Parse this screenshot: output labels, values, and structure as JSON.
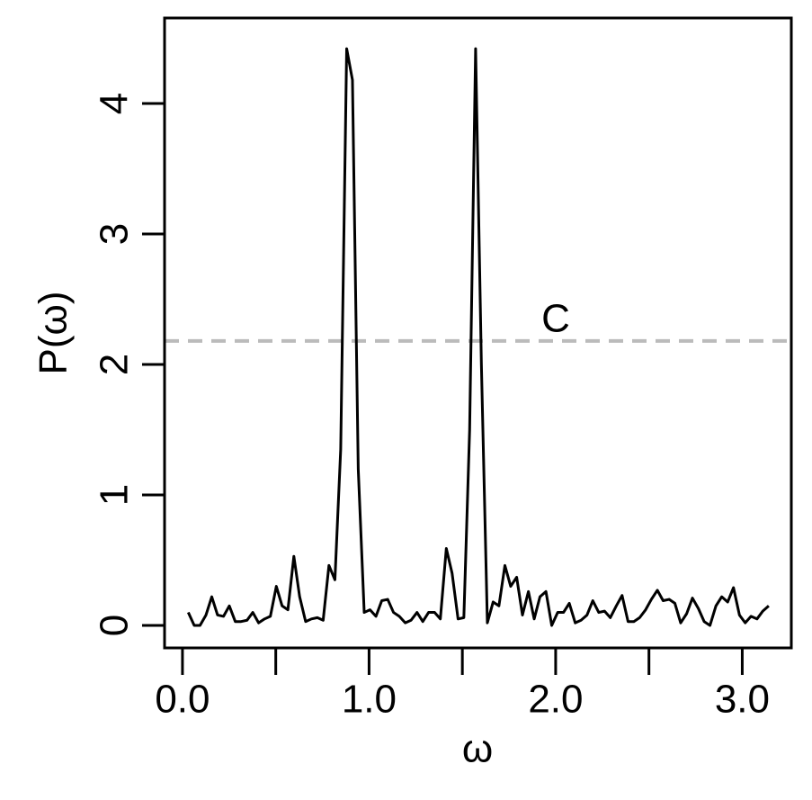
{
  "chart_data": {
    "type": "line",
    "xlabel": "ω",
    "ylabel": "P(ω)",
    "x": [
      0.031,
      0.063,
      0.094,
      0.126,
      0.157,
      0.188,
      0.22,
      0.251,
      0.283,
      0.314,
      0.346,
      0.377,
      0.408,
      0.44,
      0.471,
      0.503,
      0.534,
      0.565,
      0.597,
      0.628,
      0.66,
      0.691,
      0.723,
      0.754,
      0.785,
      0.817,
      0.848,
      0.88,
      0.911,
      0.942,
      0.974,
      1.005,
      1.037,
      1.068,
      1.1,
      1.131,
      1.162,
      1.194,
      1.225,
      1.257,
      1.288,
      1.319,
      1.351,
      1.382,
      1.414,
      1.445,
      1.477,
      1.508,
      1.539,
      1.571,
      1.602,
      1.634,
      1.665,
      1.696,
      1.728,
      1.759,
      1.791,
      1.822,
      1.854,
      1.885,
      1.916,
      1.948,
      1.979,
      2.011,
      2.042,
      2.073,
      2.105,
      2.136,
      2.168,
      2.199,
      2.231,
      2.262,
      2.293,
      2.325,
      2.356,
      2.388,
      2.419,
      2.45,
      2.482,
      2.513,
      2.545,
      2.576,
      2.608,
      2.639,
      2.67,
      2.702,
      2.733,
      2.765,
      2.796,
      2.827,
      2.859,
      2.89,
      2.922,
      2.953,
      2.985,
      3.016,
      3.047,
      3.079,
      3.11,
      3.142
    ],
    "values": [
      0.1,
      0.0,
      0.0,
      0.08,
      0.22,
      0.08,
      0.07,
      0.15,
      0.03,
      0.03,
      0.04,
      0.1,
      0.02,
      0.05,
      0.07,
      0.3,
      0.15,
      0.12,
      0.53,
      0.22,
      0.03,
      0.05,
      0.06,
      0.04,
      0.46,
      0.35,
      1.35,
      4.42,
      4.18,
      1.2,
      0.1,
      0.12,
      0.07,
      0.19,
      0.2,
      0.1,
      0.07,
      0.02,
      0.04,
      0.1,
      0.03,
      0.1,
      0.1,
      0.05,
      0.59,
      0.4,
      0.05,
      0.06,
      1.5,
      4.42,
      2.0,
      0.02,
      0.18,
      0.15,
      0.46,
      0.3,
      0.37,
      0.08,
      0.26,
      0.05,
      0.22,
      0.26,
      0.0,
      0.1,
      0.1,
      0.17,
      0.02,
      0.04,
      0.08,
      0.19,
      0.1,
      0.11,
      0.06,
      0.15,
      0.23,
      0.03,
      0.03,
      0.06,
      0.12,
      0.2,
      0.27,
      0.19,
      0.2,
      0.17,
      0.02,
      0.09,
      0.21,
      0.13,
      0.03,
      0.0,
      0.15,
      0.22,
      0.18,
      0.29,
      0.08,
      0.02,
      0.07,
      0.05,
      0.11,
      0.15
    ],
    "color": "#000000",
    "xlim": [
      -0.096,
      3.263
    ],
    "ylim": [
      -0.172,
      4.655
    ],
    "xticks": [
      {
        "value": 0,
        "label": "0.0"
      },
      {
        "value": 1,
        "label": "1.0"
      },
      {
        "value": 2,
        "label": "2.0"
      },
      {
        "value": 3,
        "label": "3.0"
      }
    ],
    "xminor_ticks": [
      0.5,
      1.5,
      2.5
    ],
    "yticks": [
      0,
      1,
      2,
      3,
      4
    ],
    "threshold": {
      "value": 2.18,
      "label": "C",
      "color": "#bbbbbb"
    }
  }
}
